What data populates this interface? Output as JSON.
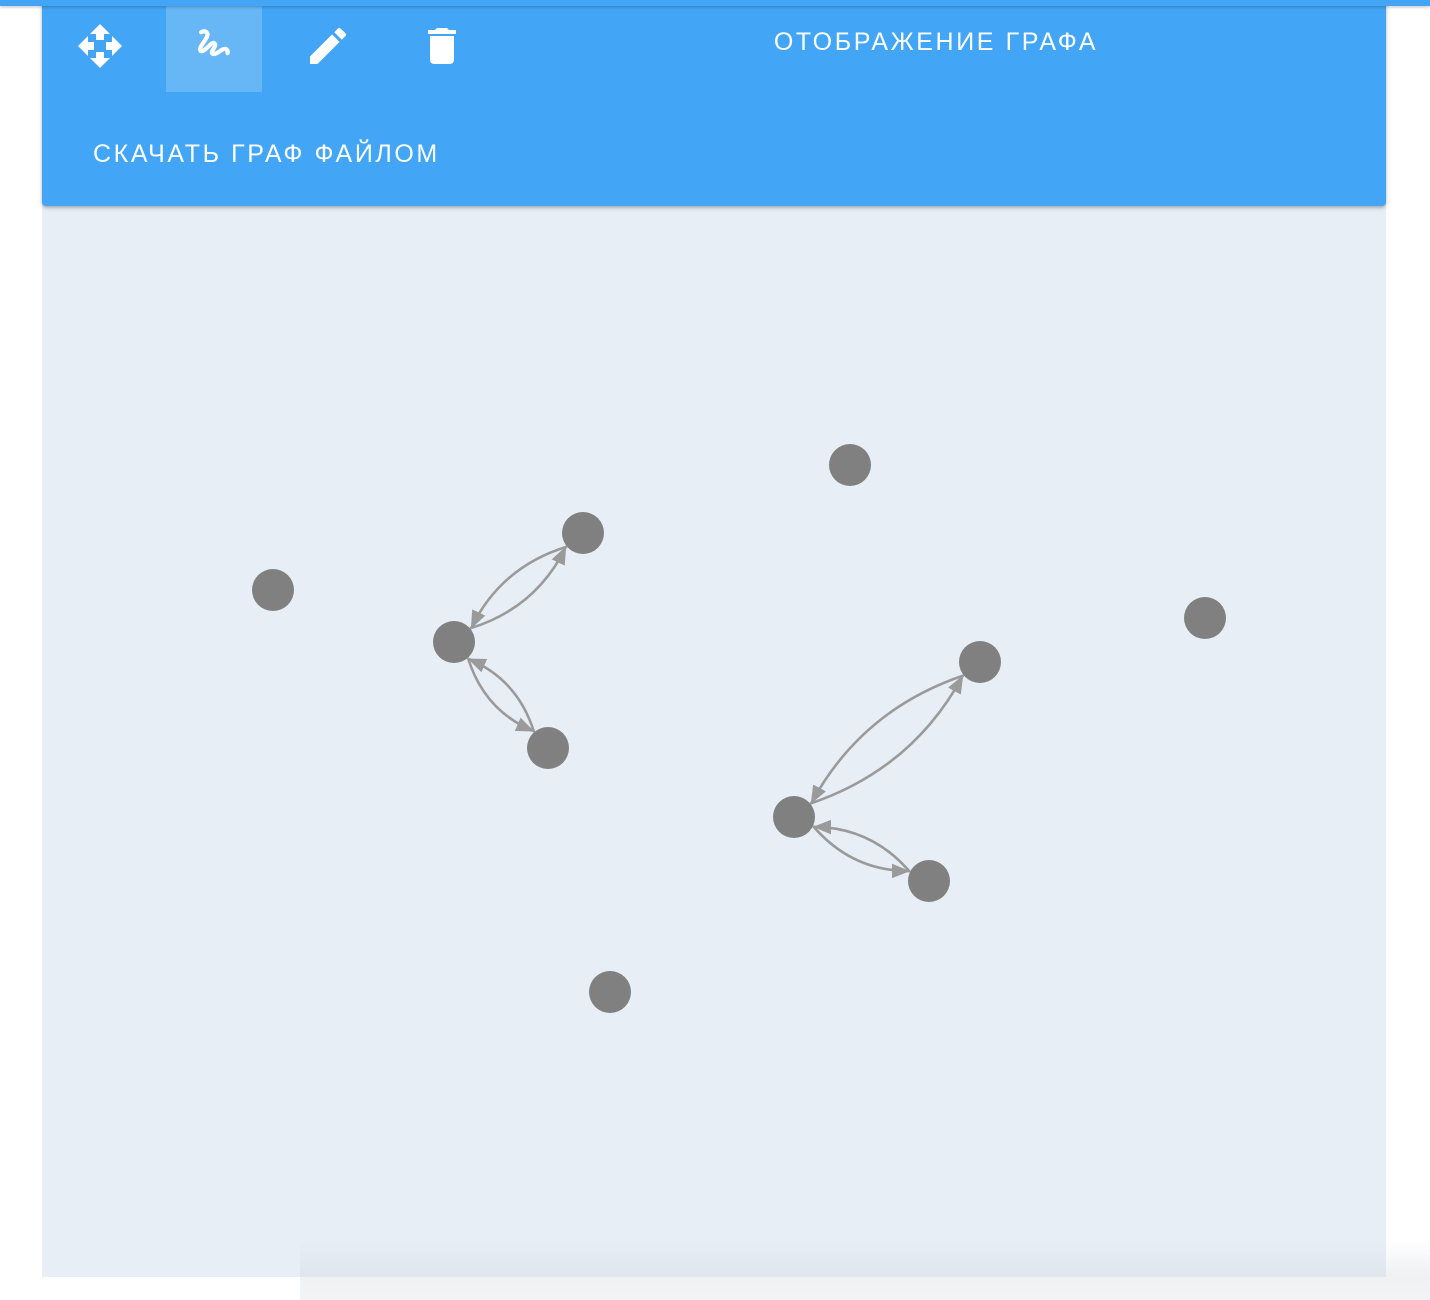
{
  "toolbar": {
    "tools": [
      {
        "name": "move-tool",
        "icon": "move-arrows-icon",
        "active": false
      },
      {
        "name": "draw-tool",
        "icon": "squiggle-draw-icon",
        "active": true
      },
      {
        "name": "edit-tool",
        "icon": "pencil-icon",
        "active": false
      },
      {
        "name": "delete-tool",
        "icon": "trash-icon",
        "active": false
      }
    ],
    "title_label": "ОТОБРАЖЕНИЕ ГРАФА",
    "download_label": "СКАЧАТЬ ГРАФ ФАЙЛОМ"
  },
  "colors": {
    "toolbar": "#42a5f5",
    "canvas": "#e8eef6",
    "node": "#808080",
    "edge": "#9a9a9a"
  },
  "graph": {
    "nodes": [
      {
        "id": "n1"
      },
      {
        "id": "n2"
      },
      {
        "id": "n3"
      },
      {
        "id": "n4"
      },
      {
        "id": "n5"
      },
      {
        "id": "n6"
      },
      {
        "id": "n7"
      },
      {
        "id": "n8"
      },
      {
        "id": "n9"
      },
      {
        "id": "n10"
      }
    ],
    "edges": [
      {
        "from": "n4",
        "to": "n3"
      },
      {
        "from": "n3",
        "to": "n4"
      },
      {
        "from": "n4",
        "to": "n5"
      },
      {
        "from": "n5",
        "to": "n4"
      },
      {
        "from": "n8",
        "to": "n6"
      },
      {
        "from": "n6",
        "to": "n8"
      },
      {
        "from": "n8",
        "to": "n9"
      },
      {
        "from": "n9",
        "to": "n8"
      }
    ]
  }
}
